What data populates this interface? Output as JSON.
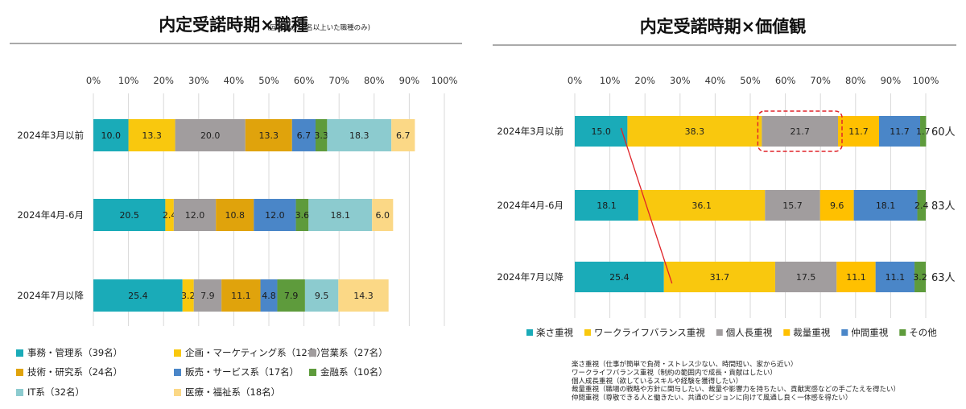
{
  "chart_data": [
    {
      "type": "bar",
      "orientation": "horizontal",
      "stacked": true,
      "title": "内定受諾時期×職種",
      "subtitle": "(回答者が10名以上いた職種のみ)",
      "x_ticks": [
        "0%",
        "10%",
        "20%",
        "30%",
        "40%",
        "50%",
        "60%",
        "70%",
        "80%",
        "90%",
        "100%"
      ],
      "xlim": [
        0,
        100
      ],
      "grid": true,
      "legend_position": "bottom",
      "categories": [
        "2024年3月以前",
        "2024年4月-6月",
        "2024年7月以降"
      ],
      "series": [
        {
          "name": "事務・管理系（39名）",
          "color": "#1aabb8",
          "values": [
            10.0,
            20.5,
            25.4
          ]
        },
        {
          "name": "企画・マーケティング系（12名）",
          "color": "#f9c80e",
          "values": [
            13.3,
            2.4,
            3.2
          ]
        },
        {
          "name": "営業系（27名）",
          "color": "#a19d9e",
          "values": [
            20.0,
            12.0,
            7.9
          ]
        },
        {
          "name": "技術・研究系（24名）",
          "color": "#e0a30c",
          "values": [
            13.3,
            10.8,
            11.1
          ]
        },
        {
          "name": "販売・サービス系（17名）",
          "color": "#4a86c8",
          "values": [
            6.7,
            12.0,
            4.8
          ]
        },
        {
          "name": "金融系（10名）",
          "color": "#5e9b3c",
          "values": [
            3.3,
            3.6,
            7.9
          ]
        },
        {
          "name": "IT系（32名）",
          "color": "#8ccbcf",
          "values": [
            18.3,
            18.1,
            9.5
          ]
        },
        {
          "name": "医療・福祉系（18名）",
          "color": "#fbd886",
          "values": [
            6.7,
            6.0,
            14.3
          ]
        }
      ],
      "value_labels": [
        [
          "10.0",
          "13.3",
          "20.0",
          "13.3",
          "6.7",
          "3.3",
          "18.3",
          "6.7"
        ],
        [
          "20.5",
          "2.4",
          "12.0",
          "10.8",
          "12.0",
          "3.6",
          "18.1",
          "6.0"
        ],
        [
          "25.4",
          "3.2",
          "7.9",
          "11.1",
          "4.8",
          "7.9",
          "9.5",
          "14.3"
        ]
      ]
    },
    {
      "type": "bar",
      "orientation": "horizontal",
      "stacked": true,
      "title": "内定受諾時期×価値観",
      "x_ticks": [
        "0%",
        "10%",
        "20%",
        "30%",
        "40%",
        "50%",
        "60%",
        "70%",
        "80%",
        "90%",
        "100%"
      ],
      "xlim": [
        0,
        100
      ],
      "grid": true,
      "legend_position": "bottom",
      "categories": [
        "2024年3月以前",
        "2024年4月-6月",
        "2024年7月以降"
      ],
      "row_totals": [
        "60人",
        "83人",
        "63人"
      ],
      "series": [
        {
          "name": "楽さ重視",
          "color": "#1aabb8",
          "values": [
            15.0,
            18.1,
            25.4
          ]
        },
        {
          "name": "ワークライフバランス重視",
          "color": "#f9c80e",
          "values": [
            38.3,
            36.1,
            31.7
          ]
        },
        {
          "name": "個人長重視",
          "color": "#a19d9e",
          "values": [
            21.7,
            15.7,
            17.5
          ]
        },
        {
          "name": "裁量重視",
          "color": "#ffc000",
          "values": [
            11.7,
            9.6,
            11.1
          ]
        },
        {
          "name": "仲間重視",
          "color": "#4a86c8",
          "values": [
            11.7,
            18.1,
            11.1
          ]
        },
        {
          "name": "その他",
          "color": "#5e9b3c",
          "values": [
            1.7,
            2.4,
            3.2
          ]
        }
      ],
      "value_labels": [
        [
          "15.0",
          "38.3",
          "21.7",
          "11.7",
          "11.7",
          "1.7"
        ],
        [
          "18.1",
          "36.1",
          "15.7",
          "9.6",
          "18.1",
          "2.4"
        ],
        [
          "25.4",
          "31.7",
          "17.5",
          "11.1",
          "11.1",
          "3.2"
        ]
      ],
      "annotations": {
        "highlight": {
          "row": 0,
          "series": 2,
          "color": "#e0242a"
        },
        "trend_line": {
          "color": "#e0242a"
        }
      },
      "notes": [
        "楽さ重視（仕事が簡単で負荷・ストレス少ない、時間短い、家から近い）",
        "ワークライフバランス重視（制約の範囲内で成長・貢献はしたい）",
        "個人成長重視（欲しているスキルや経験を獲得したい）",
        "裁量重視（職場の戦略や方針に関与したい、裁量や影響力を持ちたい、貢献実感などの手ごたえを得たい）",
        "仲間重視（尊敬できる人と働きたい、共通のビジョンに向けて風通し良く一体感を得たい）"
      ]
    }
  ]
}
